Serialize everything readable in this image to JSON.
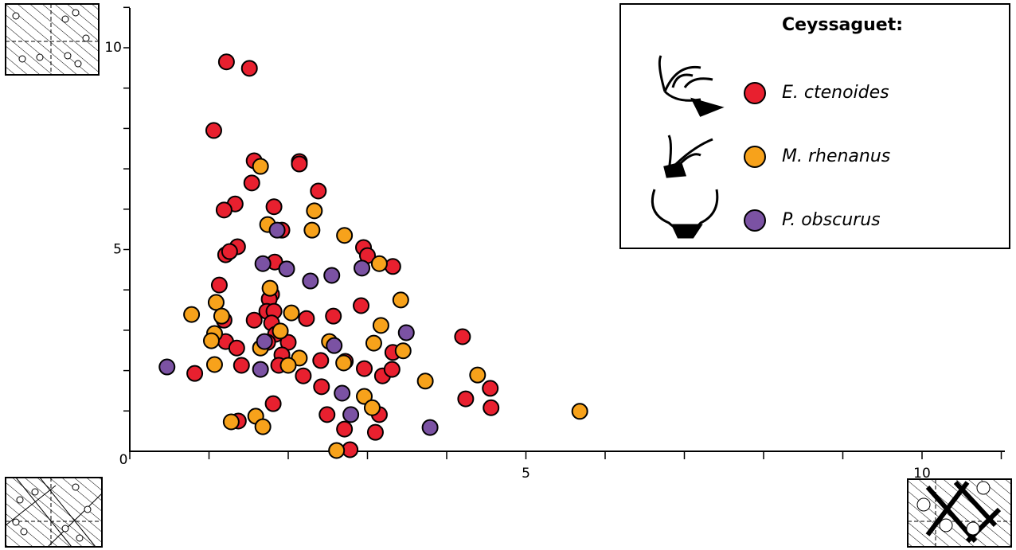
{
  "chart_data": {
    "type": "scatter",
    "xlim": [
      0,
      11
    ],
    "ylim": [
      0,
      11
    ],
    "xticks": [
      0,
      5,
      10
    ],
    "yticks": [
      5,
      10
    ],
    "minor_xticks": [
      1,
      2,
      3,
      4,
      6,
      7,
      8,
      9,
      11
    ],
    "minor_yticks": [
      1,
      2,
      3,
      4,
      6,
      7,
      8,
      9,
      11
    ],
    "legend_title": "Ceyssaguet:",
    "legend": "upper right",
    "series": [
      {
        "name": "E. ctenoides",
        "color": "#e8202f",
        "x": [
          1.22,
          1.51,
          1.06,
          1.57,
          2.14,
          2.14,
          1.54,
          2.38,
          1.33,
          1.19,
          1.82,
          1.92,
          1.36,
          1.21,
          1.26,
          1.83,
          2.95,
          3.0,
          3.32,
          1.13,
          1.79,
          1.76,
          1.73,
          1.82,
          2.92,
          2.23,
          2.57,
          1.57,
          1.79,
          1.84,
          1.19,
          1.21,
          1.35,
          1.74,
          2.0,
          1.92,
          3.32,
          1.41,
          1.88,
          2.41,
          2.72,
          2.96,
          3.19,
          3.31,
          0.82,
          2.19,
          2.42,
          4.2,
          4.55,
          4.24,
          4.56,
          1.81,
          1.37,
          2.49,
          3.15,
          2.71,
          3.1,
          2.78
        ],
        "values": [
          9.65,
          9.49,
          7.95,
          7.2,
          7.18,
          7.12,
          6.65,
          6.45,
          6.13,
          5.98,
          6.06,
          5.48,
          5.07,
          4.87,
          4.95,
          4.69,
          5.05,
          4.85,
          4.58,
          4.12,
          3.89,
          3.77,
          3.47,
          3.47,
          3.61,
          3.29,
          3.35,
          3.25,
          3.18,
          2.9,
          3.25,
          2.72,
          2.56,
          2.7,
          2.7,
          2.39,
          2.45,
          2.13,
          2.13,
          2.25,
          2.23,
          2.05,
          1.87,
          2.03,
          1.93,
          1.87,
          1.6,
          2.84,
          1.56,
          1.3,
          1.08,
          1.18,
          0.75,
          0.91,
          0.91,
          0.55,
          0.47,
          0.04
        ]
      },
      {
        "name": "M. rhenanus",
        "color": "#f7a21b",
        "x": [
          1.65,
          2.33,
          1.74,
          2.3,
          2.71,
          3.15,
          1.77,
          1.09,
          3.42,
          0.78,
          1.16,
          2.04,
          3.17,
          1.07,
          1.9,
          1.03,
          1.65,
          2.52,
          3.08,
          3.45,
          1.07,
          2.14,
          2.0,
          2.7,
          4.39,
          3.73,
          2.96,
          3.06,
          1.28,
          1.59,
          1.68,
          5.68,
          2.61
        ],
        "values": [
          7.06,
          5.96,
          5.62,
          5.48,
          5.35,
          4.65,
          4.04,
          3.69,
          3.75,
          3.39,
          3.35,
          3.43,
          3.12,
          2.92,
          2.98,
          2.74,
          2.56,
          2.72,
          2.68,
          2.49,
          2.15,
          2.31,
          2.13,
          2.19,
          1.89,
          1.74,
          1.36,
          1.08,
          0.73,
          0.87,
          0.61,
          0.99,
          0.02
        ]
      },
      {
        "name": "P. obscurus",
        "color": "#7b52a3",
        "x": [
          1.86,
          1.68,
          1.98,
          2.28,
          2.55,
          2.93,
          3.49,
          1.7,
          2.58,
          1.65,
          0.47,
          2.68,
          2.79,
          3.79
        ],
        "values": [
          5.48,
          4.65,
          4.52,
          4.22,
          4.36,
          4.54,
          2.94,
          2.72,
          2.62,
          2.03,
          2.09,
          1.44,
          0.91,
          0.59
        ]
      }
    ]
  }
}
